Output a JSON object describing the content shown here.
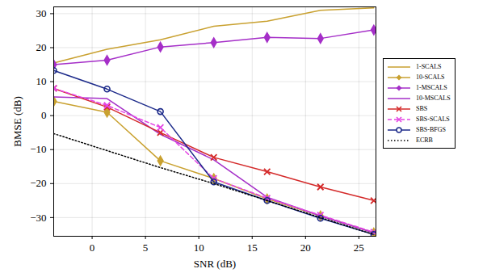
{
  "chart_data": {
    "type": "line",
    "x_label": "SNR (dB)",
    "y_label": "BMSE (dB)",
    "x": [
      -3.6,
      1.4,
      6.4,
      11.4,
      16.4,
      21.4,
      26.4
    ],
    "xlim": [
      -3.6,
      26.6
    ],
    "xticks": [
      0,
      5,
      10,
      15,
      20,
      25
    ],
    "ylim": [
      -35.5,
      32
    ],
    "yticks": [
      -30,
      -20,
      -10,
      0,
      10,
      20,
      30
    ],
    "grid": true,
    "legend": "right",
    "series": [
      {
        "name": "1-SCALS",
        "color": "#c9a130",
        "marker": "none",
        "line_style": "solid",
        "values": [
          15.5,
          19.5,
          22.3,
          26.3,
          27.8,
          31,
          31.7
        ]
      },
      {
        "name": "10-SCALS",
        "color": "#c9a130",
        "marker": "diamond",
        "line_style": "solid",
        "values": [
          4.2,
          1.0,
          -13.3,
          -18.5,
          -24.5,
          -29.5,
          -34.5
        ]
      },
      {
        "name": "1-MSCALS",
        "color": "#a52fc8",
        "marker": "diamond",
        "line_style": "solid",
        "values": [
          15,
          16.3,
          20.2,
          21.5,
          23,
          22.7,
          25.2
        ]
      },
      {
        "name": "10-MSCALS",
        "color": "#a52fc8",
        "marker": "none",
        "line_style": "solid",
        "values": [
          5.5,
          5,
          -5.5,
          -13,
          -24,
          -29.5,
          -34.5
        ]
      },
      {
        "name": "SBS",
        "color": "#d42a2a",
        "marker": "x",
        "line_style": "solid",
        "values": [
          8,
          2.5,
          -5,
          -12.3,
          -16.5,
          -21,
          -25
        ]
      },
      {
        "name": "SBS-SCALS",
        "color": "#e444e4",
        "marker": "x",
        "line_style": "dashed",
        "values": [
          8,
          3,
          -3.5,
          -18.5,
          -24.3,
          -29.3,
          -34.3
        ]
      },
      {
        "name": "SBS-BFGS",
        "color": "#1c2a8a",
        "marker": "circle",
        "line_style": "solid",
        "values": [
          13.3,
          7.8,
          1.2,
          -19.5,
          -25,
          -30.2,
          -35
        ]
      },
      {
        "name": "ECRB",
        "color": "#000000",
        "marker": "none",
        "line_style": "dotted",
        "values": [
          -5.3,
          -10.3,
          -15.3,
          -20,
          -25,
          -30,
          -35
        ]
      }
    ]
  }
}
